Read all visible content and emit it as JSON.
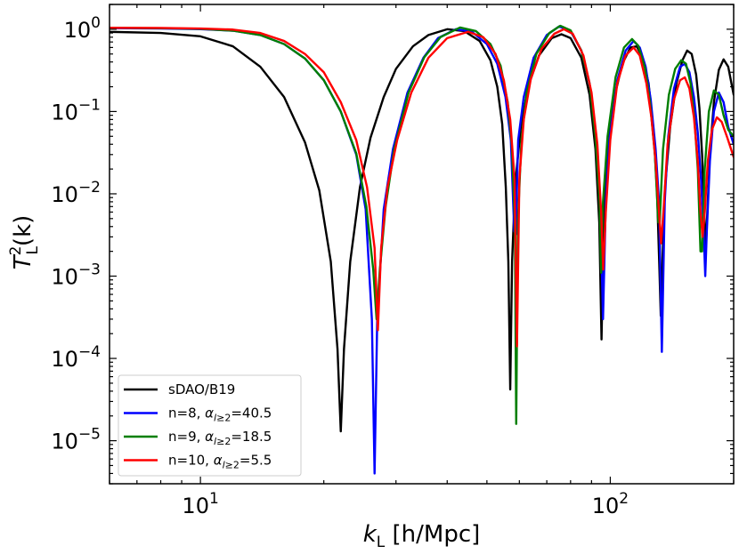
{
  "chart_data": {
    "type": "line",
    "xscale": "log",
    "yscale": "log",
    "xlim": [
      6.0,
      200.0
    ],
    "ylim": [
      3e-06,
      2.0
    ],
    "grid": false,
    "xlabel": {
      "main": "k",
      "sub": "L",
      "unit": " [h/Mpc]"
    },
    "ylabel": {
      "main": "T",
      "sup": "2",
      "sub": "L",
      "arg": "(k)"
    },
    "x_ticks": [
      {
        "value": 10,
        "base": "10",
        "exp": "1"
      },
      {
        "value": 100,
        "base": "10",
        "exp": "2"
      }
    ],
    "y_ticks": [
      {
        "value": 1,
        "base": "10",
        "exp": "0"
      },
      {
        "value": 0.1,
        "base": "10",
        "exp": "−1"
      },
      {
        "value": 0.01,
        "base": "10",
        "exp": "−2"
      },
      {
        "value": 0.001,
        "base": "10",
        "exp": "−3"
      },
      {
        "value": 0.0001,
        "base": "10",
        "exp": "−4"
      },
      {
        "value": 1e-05,
        "base": "10",
        "exp": "−5"
      }
    ],
    "legend": {
      "position": "lower-left"
    },
    "series": [
      {
        "name": "sDAO/B19",
        "label_main": "sDAO/B19",
        "label_alpha": "",
        "color": "#000000",
        "points": [
          [
            6.0,
            0.93
          ],
          [
            8.0,
            0.9
          ],
          [
            10.0,
            0.82
          ],
          [
            12.0,
            0.62
          ],
          [
            14.0,
            0.35
          ],
          [
            16.0,
            0.15
          ],
          [
            18.0,
            0.042
          ],
          [
            19.5,
            0.011
          ],
          [
            20.8,
            0.0015
          ],
          [
            21.6,
            0.00013
          ],
          [
            22.0,
            1.3e-05
          ],
          [
            22.4,
            0.00013
          ],
          [
            23.2,
            0.0015
          ],
          [
            24.5,
            0.012
          ],
          [
            26.0,
            0.048
          ],
          [
            28.0,
            0.15
          ],
          [
            30.0,
            0.33
          ],
          [
            33.0,
            0.62
          ],
          [
            36.0,
            0.85
          ],
          [
            40.0,
            1.0
          ],
          [
            44.0,
            0.95
          ],
          [
            48.0,
            0.72
          ],
          [
            51.0,
            0.42
          ],
          [
            53.0,
            0.2
          ],
          [
            54.5,
            0.07
          ],
          [
            55.6,
            0.012
          ],
          [
            56.4,
            0.0015
          ],
          [
            57.0,
            4.2e-05
          ],
          [
            57.6,
            0.0015
          ],
          [
            58.6,
            0.013
          ],
          [
            60.5,
            0.065
          ],
          [
            63.0,
            0.2
          ],
          [
            67.0,
            0.48
          ],
          [
            72.0,
            0.78
          ],
          [
            76.0,
            0.87
          ],
          [
            80.0,
            0.78
          ],
          [
            85.0,
            0.45
          ],
          [
            89.0,
            0.16
          ],
          [
            92.0,
            0.035
          ],
          [
            94.0,
            0.0045
          ],
          [
            95.2,
            0.00017
          ],
          [
            96.4,
            0.0045
          ],
          [
            98.5,
            0.033
          ],
          [
            102.0,
            0.14
          ],
          [
            107.0,
            0.38
          ],
          [
            112.0,
            0.6
          ],
          [
            116.0,
            0.62
          ],
          [
            120.0,
            0.45
          ],
          [
            124.0,
            0.22
          ],
          [
            127.5,
            0.06
          ],
          [
            130.0,
            0.011
          ],
          [
            131.8,
            0.0012
          ],
          [
            132.8,
            0.00033
          ],
          [
            133.8,
            0.0012
          ],
          [
            136.0,
            0.012
          ],
          [
            140.0,
            0.065
          ],
          [
            145.0,
            0.22
          ],
          [
            150.0,
            0.42
          ],
          [
            154.0,
            0.55
          ],
          [
            158.0,
            0.5
          ],
          [
            162.0,
            0.28
          ],
          [
            165.0,
            0.11
          ],
          [
            167.5,
            0.03
          ],
          [
            169.5,
            0.006
          ],
          [
            171.0,
            0.002
          ],
          [
            172.5,
            0.006
          ],
          [
            175.0,
            0.03
          ],
          [
            179.0,
            0.13
          ],
          [
            184.0,
            0.32
          ],
          [
            189.0,
            0.43
          ],
          [
            194.0,
            0.35
          ],
          [
            200.0,
            0.16
          ]
        ]
      },
      {
        "name": "n=8, α_{l≥2}=40.5",
        "label_main": "n=8, ",
        "label_alpha": "40.5",
        "color": "#0000ff",
        "points": [
          [
            6.0,
            1.03
          ],
          [
            8.0,
            1.02
          ],
          [
            10.0,
            1.0
          ],
          [
            12.0,
            0.96
          ],
          [
            14.0,
            0.85
          ],
          [
            16.0,
            0.66
          ],
          [
            18.0,
            0.44
          ],
          [
            20.0,
            0.24
          ],
          [
            22.0,
            0.1
          ],
          [
            24.0,
            0.03
          ],
          [
            25.3,
            0.0065
          ],
          [
            26.2,
            0.0003
          ],
          [
            26.6,
            4e-06
          ],
          [
            27.0,
            0.0003
          ],
          [
            28.0,
            0.0065
          ],
          [
            29.5,
            0.035
          ],
          [
            32.0,
            0.17
          ],
          [
            35.0,
            0.45
          ],
          [
            38.0,
            0.78
          ],
          [
            42.0,
            1.0
          ],
          [
            46.0,
            0.93
          ],
          [
            50.0,
            0.66
          ],
          [
            53.0,
            0.38
          ],
          [
            55.5,
            0.15
          ],
          [
            57.2,
            0.045
          ],
          [
            58.3,
            0.0035
          ],
          [
            58.8,
            0.0032
          ],
          [
            59.6,
            0.045
          ],
          [
            61.5,
            0.15
          ],
          [
            65.0,
            0.45
          ],
          [
            70.0,
            0.85
          ],
          [
            75.0,
            1.08
          ],
          [
            80.0,
            0.95
          ],
          [
            85.0,
            0.55
          ],
          [
            89.0,
            0.22
          ],
          [
            92.5,
            0.045
          ],
          [
            94.5,
            0.008
          ],
          [
            96.0,
            0.0003
          ],
          [
            97.5,
            0.008
          ],
          [
            99.5,
            0.045
          ],
          [
            104.0,
            0.24
          ],
          [
            109.0,
            0.55
          ],
          [
            114.0,
            0.72
          ],
          [
            118.0,
            0.6
          ],
          [
            122.0,
            0.35
          ],
          [
            125.5,
            0.14
          ],
          [
            129.0,
            0.035
          ],
          [
            131.5,
            0.008
          ],
          [
            133.6,
            0.00012
          ],
          [
            135.8,
            0.008
          ],
          [
            138.5,
            0.05
          ],
          [
            143.0,
            0.19
          ],
          [
            148.0,
            0.35
          ],
          [
            152.0,
            0.38
          ],
          [
            156.0,
            0.3
          ],
          [
            160.0,
            0.15
          ],
          [
            163.5,
            0.055
          ],
          [
            166.5,
            0.015
          ],
          [
            169.0,
            0.0035
          ],
          [
            170.5,
            0.001
          ],
          [
            172.0,
            0.0035
          ],
          [
            175.0,
            0.025
          ],
          [
            179.0,
            0.1
          ],
          [
            184.0,
            0.17
          ],
          [
            189.0,
            0.13
          ],
          [
            194.0,
            0.065
          ],
          [
            200.0,
            0.04
          ]
        ]
      },
      {
        "name": "n=9, α_{l≥2}=18.5",
        "label_main": "n=9, ",
        "label_alpha": "18.5",
        "color": "#007f00",
        "points": [
          [
            6.0,
            1.04
          ],
          [
            8.0,
            1.03
          ],
          [
            10.0,
            1.01
          ],
          [
            12.0,
            0.96
          ],
          [
            14.0,
            0.85
          ],
          [
            16.0,
            0.66
          ],
          [
            18.0,
            0.44
          ],
          [
            20.0,
            0.24
          ],
          [
            22.0,
            0.1
          ],
          [
            24.0,
            0.031
          ],
          [
            25.4,
            0.007
          ],
          [
            26.4,
            0.0012
          ],
          [
            26.9,
            0.0003
          ],
          [
            27.4,
            0.0012
          ],
          [
            28.3,
            0.007
          ],
          [
            29.7,
            0.035
          ],
          [
            32.2,
            0.17
          ],
          [
            35.2,
            0.46
          ],
          [
            38.5,
            0.8
          ],
          [
            43.0,
            1.05
          ],
          [
            47.0,
            0.95
          ],
          [
            51.0,
            0.66
          ],
          [
            54.0,
            0.36
          ],
          [
            56.2,
            0.13
          ],
          [
            57.5,
            0.04
          ],
          [
            58.5,
            0.0045
          ],
          [
            58.95,
            1.6e-05
          ],
          [
            59.5,
            0.0045
          ],
          [
            60.7,
            0.045
          ],
          [
            62.5,
            0.17
          ],
          [
            66.0,
            0.5
          ],
          [
            71.0,
            0.9
          ],
          [
            75.5,
            1.1
          ],
          [
            80.0,
            0.97
          ],
          [
            85.0,
            0.55
          ],
          [
            89.0,
            0.22
          ],
          [
            92.0,
            0.05
          ],
          [
            94.2,
            0.008
          ],
          [
            95.0,
            0.0011
          ],
          [
            96.0,
            0.008
          ],
          [
            98.5,
            0.05
          ],
          [
            103.0,
            0.26
          ],
          [
            108.0,
            0.6
          ],
          [
            113.0,
            0.76
          ],
          [
            117.0,
            0.63
          ],
          [
            121.5,
            0.34
          ],
          [
            125.0,
            0.13
          ],
          [
            128.5,
            0.03
          ],
          [
            131.0,
            0.0045
          ],
          [
            132.0,
            0.0045
          ],
          [
            134.5,
            0.035
          ],
          [
            139.0,
            0.16
          ],
          [
            144.0,
            0.33
          ],
          [
            149.0,
            0.42
          ],
          [
            153.0,
            0.38
          ],
          [
            157.0,
            0.22
          ],
          [
            160.5,
            0.08
          ],
          [
            163.5,
            0.02
          ],
          [
            166.0,
            0.002
          ],
          [
            167.5,
            0.002
          ],
          [
            170.0,
            0.02
          ],
          [
            174.0,
            0.1
          ],
          [
            179.0,
            0.18
          ],
          [
            184.0,
            0.16
          ],
          [
            189.0,
            0.09
          ],
          [
            194.0,
            0.06
          ],
          [
            200.0,
            0.05
          ]
        ]
      },
      {
        "name": "n=10, α_{l≥2}=5.5",
        "label_main": "n=10, ",
        "label_alpha": "5.5",
        "color": "#ff0000",
        "points": [
          [
            6.0,
            1.04
          ],
          [
            8.0,
            1.035
          ],
          [
            10.0,
            1.02
          ],
          [
            12.0,
            0.99
          ],
          [
            14.0,
            0.9
          ],
          [
            16.0,
            0.72
          ],
          [
            18.0,
            0.5
          ],
          [
            20.0,
            0.3
          ],
          [
            22.0,
            0.13
          ],
          [
            24.0,
            0.045
          ],
          [
            25.5,
            0.012
          ],
          [
            26.6,
            0.0022
          ],
          [
            27.1,
            0.00022
          ],
          [
            27.6,
            0.0022
          ],
          [
            28.6,
            0.012
          ],
          [
            30.2,
            0.045
          ],
          [
            32.7,
            0.17
          ],
          [
            36.0,
            0.45
          ],
          [
            40.0,
            0.78
          ],
          [
            45.0,
            0.93
          ],
          [
            49.0,
            0.8
          ],
          [
            52.5,
            0.5
          ],
          [
            55.0,
            0.24
          ],
          [
            57.0,
            0.08
          ],
          [
            58.4,
            0.015
          ],
          [
            59.2,
            0.00014
          ],
          [
            60.0,
            0.015
          ],
          [
            61.5,
            0.08
          ],
          [
            64.0,
            0.25
          ],
          [
            68.0,
            0.58
          ],
          [
            73.0,
            0.88
          ],
          [
            77.0,
            1.0
          ],
          [
            81.0,
            0.88
          ],
          [
            86.0,
            0.48
          ],
          [
            90.0,
            0.17
          ],
          [
            93.0,
            0.04
          ],
          [
            95.0,
            0.006
          ],
          [
            96.1,
            0.0012
          ],
          [
            97.5,
            0.006
          ],
          [
            100.0,
            0.045
          ],
          [
            104.0,
            0.22
          ],
          [
            109.0,
            0.48
          ],
          [
            114.0,
            0.6
          ],
          [
            118.0,
            0.48
          ],
          [
            122.5,
            0.22
          ],
          [
            126.0,
            0.085
          ],
          [
            129.0,
            0.025
          ],
          [
            131.5,
            0.006
          ],
          [
            133.0,
            0.0025
          ],
          [
            134.8,
            0.006
          ],
          [
            138.0,
            0.04
          ],
          [
            143.0,
            0.14
          ],
          [
            148.0,
            0.24
          ],
          [
            152.0,
            0.26
          ],
          [
            156.0,
            0.19
          ],
          [
            160.0,
            0.085
          ],
          [
            163.5,
            0.025
          ],
          [
            166.0,
            0.006
          ],
          [
            168.0,
            0.003
          ],
          [
            170.0,
            0.006
          ],
          [
            173.0,
            0.025
          ],
          [
            177.0,
            0.06
          ],
          [
            182.0,
            0.085
          ],
          [
            187.0,
            0.075
          ],
          [
            193.0,
            0.048
          ],
          [
            200.0,
            0.028
          ]
        ]
      }
    ]
  }
}
